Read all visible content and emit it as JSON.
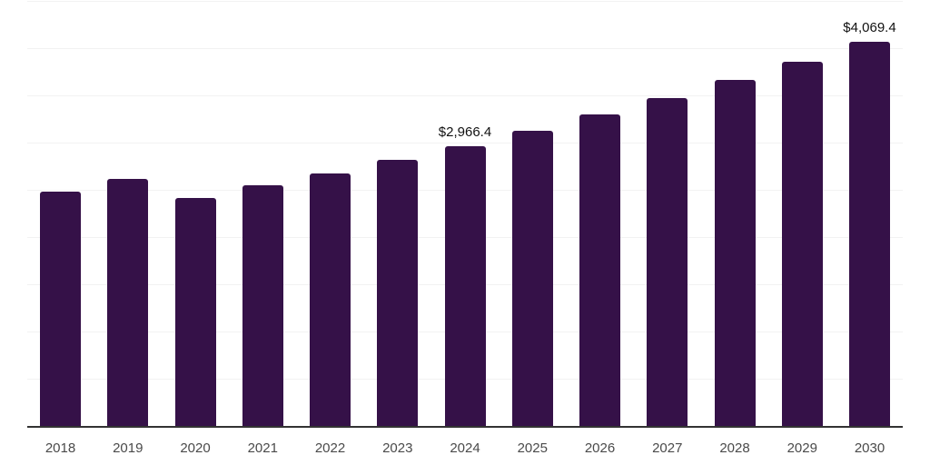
{
  "chart_data": {
    "type": "bar",
    "title": "",
    "xlabel": "",
    "ylabel": "",
    "categories": [
      "2018",
      "2019",
      "2020",
      "2021",
      "2022",
      "2023",
      "2024",
      "2025",
      "2026",
      "2027",
      "2028",
      "2029",
      "2030"
    ],
    "values": [
      2480,
      2613,
      2410,
      2548,
      2672,
      2814,
      2966.4,
      3127,
      3296,
      3474,
      3662,
      3860,
      4069.4
    ],
    "value_labels": [
      {
        "category": "2024",
        "text": "$2,966.4"
      },
      {
        "category": "2030",
        "text": "$4,069.4"
      }
    ],
    "ylim": [
      0,
      4500
    ],
    "gridline_interval": 500,
    "grid": "horizontal",
    "legend_position": "none",
    "colors": {
      "bar": "#351148",
      "axis_line": "#333333",
      "gridline": "#f2f2f2",
      "tick_label": "#4a4a4a",
      "data_label": "#111111",
      "background": "#ffffff"
    }
  }
}
